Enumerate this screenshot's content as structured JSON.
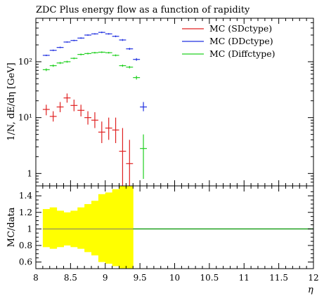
{
  "chart_data": [
    {
      "type": "scatter",
      "title": "ZDC Plus energy flow as a function of rapidity",
      "ylabel": "1/N, dE/dη [GeV]",
      "yscale": "log",
      "ylim": [
        0.6,
        600
      ],
      "xlim": [
        8,
        12
      ],
      "grid": false,
      "legend": "top-right",
      "series": [
        {
          "name": "MC (SDctype)",
          "color": "#e02020",
          "points": [
            {
              "x": 8.15,
              "y": 14,
              "ylo": 11,
              "yhi": 17
            },
            {
              "x": 8.25,
              "y": 10.5,
              "ylo": 8.5,
              "yhi": 13
            },
            {
              "x": 8.35,
              "y": 15.5,
              "ylo": 12.5,
              "yhi": 19
            },
            {
              "x": 8.45,
              "y": 22.5,
              "ylo": 18.5,
              "yhi": 27
            },
            {
              "x": 8.55,
              "y": 16.5,
              "ylo": 13,
              "yhi": 21
            },
            {
              "x": 8.65,
              "y": 13.5,
              "ylo": 10.5,
              "yhi": 17
            },
            {
              "x": 8.75,
              "y": 10,
              "ylo": 7.5,
              "yhi": 13
            },
            {
              "x": 8.85,
              "y": 9,
              "ylo": 6.5,
              "yhi": 12.5
            },
            {
              "x": 8.95,
              "y": 5.5,
              "ylo": 3.5,
              "yhi": 8.5
            },
            {
              "x": 9.05,
              "y": 6.5,
              "ylo": 4,
              "yhi": 10
            },
            {
              "x": 9.15,
              "y": 6,
              "ylo": 3.5,
              "yhi": 10
            },
            {
              "x": 9.25,
              "y": 2.5,
              "ylo": 0.6,
              "yhi": 6.5
            },
            {
              "x": 9.35,
              "y": 1.5,
              "ylo": 0.6,
              "yhi": 4
            }
          ]
        },
        {
          "name": "MC (DDctype)",
          "color": "#2030e0",
          "points": [
            {
              "x": 8.15,
              "y": 130,
              "ylo": 126,
              "yhi": 134
            },
            {
              "x": 8.25,
              "y": 160,
              "ylo": 155,
              "yhi": 165
            },
            {
              "x": 8.35,
              "y": 180,
              "ylo": 175,
              "yhi": 186
            },
            {
              "x": 8.45,
              "y": 225,
              "ylo": 219,
              "yhi": 231
            },
            {
              "x": 8.55,
              "y": 240,
              "ylo": 233,
              "yhi": 247
            },
            {
              "x": 8.65,
              "y": 265,
              "ylo": 257,
              "yhi": 273
            },
            {
              "x": 8.75,
              "y": 300,
              "ylo": 291,
              "yhi": 309
            },
            {
              "x": 8.85,
              "y": 315,
              "ylo": 306,
              "yhi": 324
            },
            {
              "x": 8.95,
              "y": 335,
              "ylo": 324,
              "yhi": 346
            },
            {
              "x": 9.05,
              "y": 315,
              "ylo": 305,
              "yhi": 325
            },
            {
              "x": 9.15,
              "y": 285,
              "ylo": 275,
              "yhi": 295
            },
            {
              "x": 9.25,
              "y": 245,
              "ylo": 236,
              "yhi": 254
            },
            {
              "x": 9.35,
              "y": 170,
              "ylo": 163,
              "yhi": 177
            },
            {
              "x": 9.45,
              "y": 110,
              "ylo": 104,
              "yhi": 116
            },
            {
              "x": 9.55,
              "y": 15.5,
              "ylo": 13,
              "yhi": 19
            }
          ]
        },
        {
          "name": "MC (Diffctype)",
          "color": "#20d020",
          "points": [
            {
              "x": 8.15,
              "y": 72,
              "ylo": 68,
              "yhi": 76
            },
            {
              "x": 8.25,
              "y": 85,
              "ylo": 81,
              "yhi": 89
            },
            {
              "x": 8.35,
              "y": 95,
              "ylo": 91,
              "yhi": 99
            },
            {
              "x": 8.45,
              "y": 100,
              "ylo": 96,
              "yhi": 104
            },
            {
              "x": 8.55,
              "y": 115,
              "ylo": 111,
              "yhi": 119
            },
            {
              "x": 8.65,
              "y": 135,
              "ylo": 130,
              "yhi": 140
            },
            {
              "x": 8.75,
              "y": 140,
              "ylo": 135,
              "yhi": 145
            },
            {
              "x": 8.85,
              "y": 145,
              "ylo": 140,
              "yhi": 150
            },
            {
              "x": 8.95,
              "y": 148,
              "ylo": 143,
              "yhi": 153
            },
            {
              "x": 9.05,
              "y": 145,
              "ylo": 140,
              "yhi": 150
            },
            {
              "x": 9.15,
              "y": 130,
              "ylo": 125,
              "yhi": 135
            },
            {
              "x": 9.25,
              "y": 85,
              "ylo": 81,
              "yhi": 89
            },
            {
              "x": 9.35,
              "y": 80,
              "ylo": 76,
              "yhi": 84
            },
            {
              "x": 9.45,
              "y": 52,
              "ylo": 48,
              "yhi": 56
            },
            {
              "x": 9.55,
              "y": 2.8,
              "ylo": 0.8,
              "yhi": 5
            }
          ]
        }
      ],
      "yticks": [
        {
          "value": 1,
          "label": "1"
        },
        {
          "value": 10,
          "label": "10¹"
        },
        {
          "value": 100,
          "label": "10²"
        }
      ]
    },
    {
      "type": "area",
      "ylabel": "MC/data",
      "xlabel": "η",
      "xlim": [
        8,
        12
      ],
      "ylim": [
        0.52,
        1.52
      ],
      "band_color": "#ffff00",
      "ratio_line_color": "#20a020",
      "band": [
        {
          "x0": 8.1,
          "x1": 8.2,
          "lo": 0.78,
          "hi": 1.24
        },
        {
          "x0": 8.2,
          "x1": 8.3,
          "lo": 0.76,
          "hi": 1.26
        },
        {
          "x0": 8.3,
          "x1": 8.4,
          "lo": 0.78,
          "hi": 1.22
        },
        {
          "x0": 8.4,
          "x1": 8.5,
          "lo": 0.8,
          "hi": 1.2
        },
        {
          "x0": 8.5,
          "x1": 8.6,
          "lo": 0.78,
          "hi": 1.22
        },
        {
          "x0": 8.6,
          "x1": 8.7,
          "lo": 0.76,
          "hi": 1.26
        },
        {
          "x0": 8.7,
          "x1": 8.8,
          "lo": 0.72,
          "hi": 1.3
        },
        {
          "x0": 8.8,
          "x1": 8.9,
          "lo": 0.68,
          "hi": 1.34
        },
        {
          "x0": 8.9,
          "x1": 9.0,
          "lo": 0.6,
          "hi": 1.42
        },
        {
          "x0": 9.0,
          "x1": 9.1,
          "lo": 0.58,
          "hi": 1.44
        },
        {
          "x0": 9.1,
          "x1": 9.2,
          "lo": 0.55,
          "hi": 1.48
        },
        {
          "x0": 9.2,
          "x1": 9.3,
          "lo": 0.52,
          "hi": 1.52
        },
        {
          "x0": 9.3,
          "x1": 9.4,
          "lo": 0.52,
          "hi": 1.52
        }
      ],
      "ratio_line": [
        {
          "x": 9.4,
          "y": 1.0
        },
        {
          "x": 12.0,
          "y": 1.0
        }
      ],
      "reference_line": {
        "y": 1.0,
        "x0": 8.1,
        "x1": 9.4
      },
      "yticks": [
        {
          "value": 0.6,
          "label": "0.6"
        },
        {
          "value": 0.8,
          "label": "0.8"
        },
        {
          "value": 1.0,
          "label": "1"
        },
        {
          "value": 1.2,
          "label": "1.2"
        },
        {
          "value": 1.4,
          "label": "1.4"
        }
      ],
      "xticks": [
        {
          "value": 8,
          "label": "8"
        },
        {
          "value": 8.5,
          "label": "8.5"
        },
        {
          "value": 9,
          "label": "9"
        },
        {
          "value": 9.5,
          "label": "9.5"
        },
        {
          "value": 10,
          "label": "10"
        },
        {
          "value": 10.5,
          "label": "10.5"
        },
        {
          "value": 11,
          "label": "11"
        },
        {
          "value": 11.5,
          "label": "11.5"
        },
        {
          "value": 12,
          "label": "12"
        }
      ]
    }
  ]
}
